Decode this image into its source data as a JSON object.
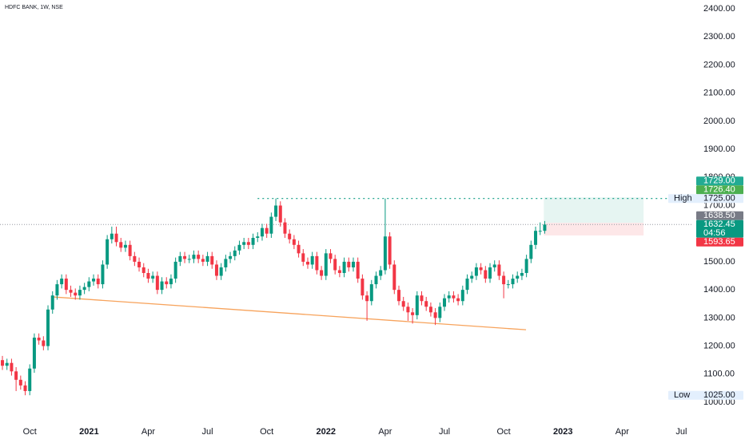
{
  "chart_data": {
    "type": "candlestick",
    "title": "HDFC BANK, 1W, NSE",
    "up_color": "#089981",
    "down_color": "#f23645",
    "xlim": [
      -0.53,
      151.2
    ],
    "ylim": [
      1000,
      2400
    ],
    "yticks": [
      {
        "value": 1000,
        "label": "1000.00"
      },
      {
        "value": 1100,
        "label": "1100.00"
      },
      {
        "value": 1200,
        "label": "1200.00"
      },
      {
        "value": 1300,
        "label": "1300.00"
      },
      {
        "value": 1400,
        "label": "1400.00"
      },
      {
        "value": 1500,
        "label": "1500.00"
      },
      {
        "value": 1600,
        "label": "1600.00"
      },
      {
        "value": 1700,
        "label": "1700.00"
      },
      {
        "value": 1800,
        "label": "1800.00"
      },
      {
        "value": 1900,
        "label": "1900.00"
      },
      {
        "value": 2000,
        "label": "2000.00"
      },
      {
        "value": 2100,
        "label": "2100.00"
      },
      {
        "value": 2200,
        "label": "2200.00"
      },
      {
        "value": 2300,
        "label": "2300.00"
      },
      {
        "value": 2400,
        "label": "2400.00"
      }
    ],
    "xticks": [
      {
        "value": 6,
        "label": "Oct"
      },
      {
        "value": 19,
        "label": "2021"
      },
      {
        "value": 32,
        "label": "Apr"
      },
      {
        "value": 45,
        "label": "Jul"
      },
      {
        "value": 58,
        "label": "Oct"
      },
      {
        "value": 71,
        "label": "2022"
      },
      {
        "value": 84,
        "label": "Apr"
      },
      {
        "value": 97,
        "label": "Jul"
      },
      {
        "value": 110,
        "label": "Oct"
      },
      {
        "value": 123,
        "label": "2023"
      },
      {
        "value": 136,
        "label": "Apr"
      },
      {
        "value": 149,
        "label": "Jul"
      }
    ],
    "ohlc": [
      [
        1150,
        1165,
        1115,
        1130
      ],
      [
        1130,
        1155,
        1115,
        1140
      ],
      [
        1140,
        1155,
        1095,
        1110
      ],
      [
        1110,
        1125,
        1040,
        1080
      ],
      [
        1080,
        1095,
        1045,
        1060
      ],
      [
        1060,
        1075,
        1025,
        1040
      ],
      [
        1040,
        1135,
        1025,
        1120
      ],
      [
        1120,
        1245,
        1105,
        1230
      ],
      [
        1230,
        1245,
        1205,
        1220
      ],
      [
        1220,
        1235,
        1185,
        1200
      ],
      [
        1200,
        1345,
        1185,
        1330
      ],
      [
        1330,
        1395,
        1315,
        1380
      ],
      [
        1380,
        1435,
        1365,
        1420
      ],
      [
        1420,
        1455,
        1405,
        1440
      ],
      [
        1440,
        1455,
        1385,
        1400
      ],
      [
        1400,
        1415,
        1375,
        1390
      ],
      [
        1390,
        1405,
        1365,
        1380
      ],
      [
        1380,
        1415,
        1365,
        1400
      ],
      [
        1400,
        1425,
        1385,
        1410
      ],
      [
        1410,
        1445,
        1395,
        1430
      ],
      [
        1430,
        1455,
        1415,
        1440
      ],
      [
        1440,
        1455,
        1405,
        1420
      ],
      [
        1420,
        1505,
        1405,
        1490
      ],
      [
        1490,
        1595,
        1475,
        1580
      ],
      [
        1580,
        1625,
        1565,
        1600
      ],
      [
        1600,
        1625,
        1555,
        1570
      ],
      [
        1570,
        1585,
        1535,
        1550
      ],
      [
        1550,
        1575,
        1535,
        1560
      ],
      [
        1560,
        1575,
        1505,
        1520
      ],
      [
        1520,
        1535,
        1485,
        1500
      ],
      [
        1500,
        1515,
        1465,
        1480
      ],
      [
        1480,
        1495,
        1445,
        1460
      ],
      [
        1460,
        1475,
        1425,
        1440
      ],
      [
        1440,
        1465,
        1425,
        1450
      ],
      [
        1450,
        1465,
        1385,
        1400
      ],
      [
        1400,
        1445,
        1385,
        1430
      ],
      [
        1430,
        1445,
        1405,
        1420
      ],
      [
        1420,
        1455,
        1405,
        1440
      ],
      [
        1440,
        1515,
        1425,
        1500
      ],
      [
        1500,
        1535,
        1485,
        1520
      ],
      [
        1520,
        1535,
        1495,
        1510
      ],
      [
        1510,
        1525,
        1495,
        1510
      ],
      [
        1510,
        1540,
        1495,
        1525
      ],
      [
        1525,
        1540,
        1495,
        1510
      ],
      [
        1510,
        1525,
        1485,
        1500
      ],
      [
        1500,
        1535,
        1485,
        1520
      ],
      [
        1520,
        1535,
        1475,
        1490
      ],
      [
        1490,
        1505,
        1435,
        1450
      ],
      [
        1450,
        1495,
        1435,
        1480
      ],
      [
        1480,
        1525,
        1465,
        1510
      ],
      [
        1510,
        1535,
        1495,
        1520
      ],
      [
        1520,
        1555,
        1505,
        1540
      ],
      [
        1540,
        1575,
        1525,
        1560
      ],
      [
        1560,
        1585,
        1545,
        1570
      ],
      [
        1570,
        1585,
        1545,
        1560
      ],
      [
        1560,
        1600,
        1545,
        1585
      ],
      [
        1585,
        1605,
        1570,
        1590
      ],
      [
        1590,
        1635,
        1575,
        1620
      ],
      [
        1620,
        1635,
        1585,
        1600
      ],
      [
        1600,
        1675,
        1585,
        1660
      ],
      [
        1660,
        1725,
        1645,
        1700
      ],
      [
        1700,
        1715,
        1625,
        1640
      ],
      [
        1640,
        1655,
        1585,
        1600
      ],
      [
        1600,
        1615,
        1565,
        1580
      ],
      [
        1580,
        1595,
        1545,
        1560
      ],
      [
        1560,
        1575,
        1515,
        1530
      ],
      [
        1530,
        1545,
        1485,
        1500
      ],
      [
        1500,
        1515,
        1475,
        1490
      ],
      [
        1490,
        1535,
        1475,
        1520
      ],
      [
        1520,
        1535,
        1455,
        1470
      ],
      [
        1470,
        1485,
        1435,
        1450
      ],
      [
        1450,
        1545,
        1435,
        1530
      ],
      [
        1530,
        1545,
        1495,
        1510
      ],
      [
        1510,
        1525,
        1455,
        1470
      ],
      [
        1470,
        1485,
        1445,
        1460
      ],
      [
        1460,
        1515,
        1445,
        1500
      ],
      [
        1500,
        1515,
        1465,
        1480
      ],
      [
        1480,
        1515,
        1465,
        1500
      ],
      [
        1500,
        1515,
        1425,
        1440
      ],
      [
        1440,
        1455,
        1365,
        1380
      ],
      [
        1380,
        1395,
        1290,
        1360
      ],
      [
        1360,
        1435,
        1345,
        1420
      ],
      [
        1420,
        1465,
        1405,
        1450
      ],
      [
        1450,
        1485,
        1435,
        1470
      ],
      [
        1470,
        1725,
        1455,
        1590
      ],
      [
        1590,
        1605,
        1475,
        1490
      ],
      [
        1490,
        1505,
        1385,
        1400
      ],
      [
        1400,
        1415,
        1345,
        1360
      ],
      [
        1360,
        1375,
        1325,
        1340
      ],
      [
        1340,
        1355,
        1290,
        1320
      ],
      [
        1320,
        1335,
        1280,
        1310
      ],
      [
        1310,
        1395,
        1295,
        1380
      ],
      [
        1380,
        1395,
        1345,
        1360
      ],
      [
        1360,
        1375,
        1325,
        1340
      ],
      [
        1340,
        1355,
        1305,
        1320
      ],
      [
        1320,
        1335,
        1275,
        1300
      ],
      [
        1300,
        1355,
        1285,
        1340
      ],
      [
        1340,
        1385,
        1325,
        1370
      ],
      [
        1370,
        1395,
        1355,
        1380
      ],
      [
        1380,
        1395,
        1355,
        1370
      ],
      [
        1370,
        1385,
        1345,
        1360
      ],
      [
        1360,
        1415,
        1345,
        1400
      ],
      [
        1400,
        1455,
        1385,
        1440
      ],
      [
        1440,
        1465,
        1425,
        1450
      ],
      [
        1450,
        1495,
        1435,
        1480
      ],
      [
        1480,
        1495,
        1455,
        1470
      ],
      [
        1470,
        1485,
        1425,
        1440
      ],
      [
        1440,
        1495,
        1425,
        1480
      ],
      [
        1480,
        1505,
        1465,
        1490
      ],
      [
        1490,
        1505,
        1435,
        1450
      ],
      [
        1450,
        1465,
        1370,
        1420
      ],
      [
        1420,
        1435,
        1405,
        1420
      ],
      [
        1420,
        1455,
        1405,
        1440
      ],
      [
        1440,
        1465,
        1425,
        1450
      ],
      [
        1450,
        1475,
        1435,
        1460
      ],
      [
        1460,
        1525,
        1445,
        1510
      ],
      [
        1510,
        1575,
        1495,
        1560
      ],
      [
        1560,
        1625,
        1545,
        1610
      ],
      [
        1610,
        1640,
        1595,
        1610
      ],
      [
        1610,
        1645,
        1600,
        1632.45
      ]
    ],
    "trendline": {
      "color": "#f7a35c",
      "x": [
        10.9,
        114.9
      ],
      "y": [
        1375,
        1258
      ]
    },
    "high_line": {
      "color": "#089981",
      "x": [
        56,
        146
      ]
    },
    "position": {
      "x": [
        118.8,
        140.7
      ],
      "entry": 3,
      "target": 0,
      "stop": 5
    },
    "price_tags": [
      {
        "value": 1729,
        "label": "1729.00",
        "color": "#22ab94"
      },
      {
        "value": 1726.4,
        "label": "1726.40",
        "color": "#4caf50"
      },
      {
        "value": 1725,
        "label": "1725.00",
        "text": "High",
        "color": "#e3effd"
      },
      {
        "value": 1638.5,
        "label": "1638.50",
        "color": "#787b86"
      },
      {
        "value": 1632.45,
        "label": "1632.45",
        "countdown": "04:56",
        "color": "#089981"
      },
      {
        "value": 1593.65,
        "label": "1593.65",
        "color": "#f23645"
      }
    ],
    "low_tag": {
      "value": 1025,
      "label": "1025.00",
      "text": "Low",
      "color": "#e3effd"
    }
  }
}
